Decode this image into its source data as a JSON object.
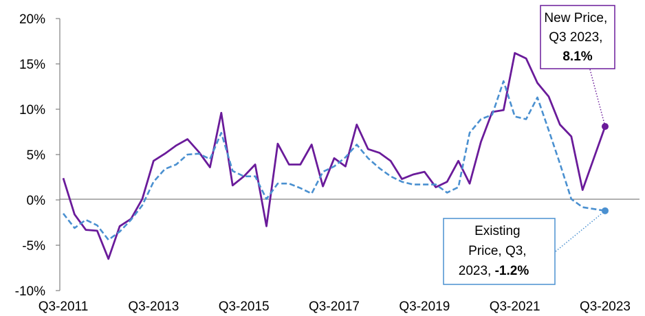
{
  "chart_data": {
    "type": "line",
    "title": "",
    "xlabel": "",
    "ylabel": "",
    "ylim": [
      -10,
      20
    ],
    "y_ticks": [
      -10,
      -5,
      0,
      5,
      10,
      15,
      20
    ],
    "y_tick_labels": [
      "-10%",
      "-5%",
      "0%",
      "5%",
      "10%",
      "15%",
      "20%"
    ],
    "x_tick_labels": [
      "Q3-2011",
      "Q3-2013",
      "Q3-2015",
      "Q3-2017",
      "Q3-2019",
      "Q3-2021",
      "Q3-2023"
    ],
    "x": [
      "Q3-2011",
      "Q4-2011",
      "Q1-2012",
      "Q2-2012",
      "Q3-2012",
      "Q4-2012",
      "Q1-2013",
      "Q2-2013",
      "Q3-2013",
      "Q4-2013",
      "Q1-2014",
      "Q2-2014",
      "Q3-2014",
      "Q4-2014",
      "Q1-2015",
      "Q2-2015",
      "Q3-2015",
      "Q4-2015",
      "Q1-2016",
      "Q2-2016",
      "Q3-2016",
      "Q4-2016",
      "Q1-2017",
      "Q2-2017",
      "Q3-2017",
      "Q4-2017",
      "Q1-2018",
      "Q2-2018",
      "Q3-2018",
      "Q4-2018",
      "Q1-2019",
      "Q2-2019",
      "Q3-2019",
      "Q4-2019",
      "Q1-2020",
      "Q2-2020",
      "Q3-2020",
      "Q4-2020",
      "Q1-2021",
      "Q2-2021",
      "Q3-2021",
      "Q4-2021",
      "Q1-2022",
      "Q2-2022",
      "Q3-2022",
      "Q4-2022",
      "Q1-2023",
      "Q2-2023",
      "Q3-2023"
    ],
    "series": [
      {
        "key": "new_price",
        "color": "#6a1b9a",
        "style": "solid",
        "values": [
          2.4,
          -1.6,
          -3.3,
          -3.4,
          -6.5,
          -2.9,
          -2.1,
          0.1,
          4.3,
          5.1,
          6.0,
          6.7,
          5.3,
          3.6,
          9.6,
          1.6,
          2.6,
          3.9,
          -2.9,
          6.2,
          3.9,
          3.9,
          6.1,
          1.5,
          4.6,
          3.7,
          8.3,
          5.6,
          5.2,
          4.3,
          2.3,
          2.8,
          3.1,
          1.4,
          2.0,
          4.3,
          1.8,
          6.4,
          9.7,
          9.9,
          16.2,
          15.6,
          12.9,
          11.4,
          8.3,
          7.0,
          1.1,
          4.6,
          8.1
        ]
      },
      {
        "key": "existing_price",
        "color": "#4a90d0",
        "style": "dashed",
        "values": [
          -1.5,
          -3.1,
          -2.2,
          -2.8,
          -4.4,
          -3.5,
          -2.2,
          -0.6,
          2.0,
          3.4,
          3.9,
          5.0,
          5.1,
          4.5,
          7.4,
          3.2,
          2.6,
          2.6,
          0.1,
          1.8,
          1.8,
          1.3,
          0.7,
          3.1,
          3.7,
          4.7,
          6.1,
          4.6,
          3.5,
          2.6,
          2.0,
          1.7,
          1.7,
          1.7,
          0.8,
          1.4,
          7.4,
          8.9,
          9.4,
          13.1,
          9.2,
          8.9,
          11.3,
          7.7,
          4.0,
          0.1,
          -0.8,
          -1.0,
          -1.2
        ]
      }
    ],
    "callouts": [
      {
        "series": "new_price",
        "lines": [
          "New Price,",
          "Q3 2023,"
        ],
        "value_label": "8.1%",
        "border_color": "#6a1b9a"
      },
      {
        "series": "existing_price",
        "lines": [
          "Existing",
          "Price, Q3,",
          "2023, "
        ],
        "value_label": "-1.2%",
        "border_color": "#4a90d0"
      }
    ]
  }
}
